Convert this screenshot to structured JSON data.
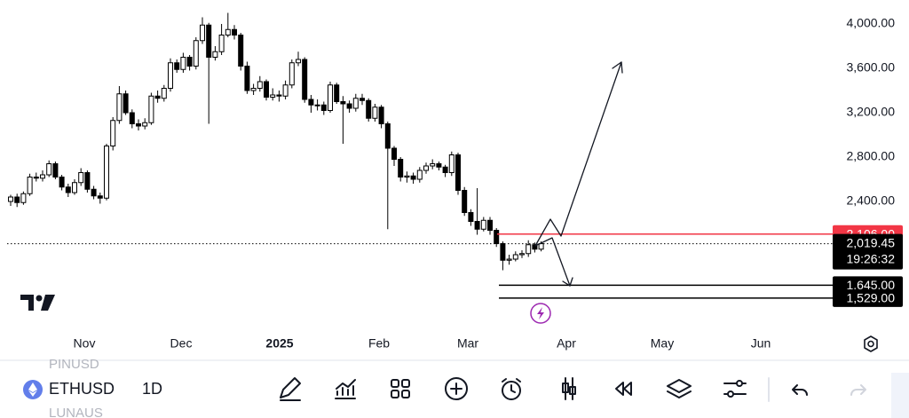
{
  "chart_data": {
    "type": "candlestick",
    "open": [
      2400,
      2440,
      2390,
      2470,
      2620,
      2610,
      2640,
      2740,
      2620,
      2530,
      2480,
      2570,
      2660,
      2510,
      2450,
      2430,
      2900,
      3130,
      3370,
      3200,
      3100,
      3080,
      3110,
      3350,
      3330,
      3420,
      3650,
      3590,
      3700,
      3620,
      3850,
      3990,
      3700,
      3750,
      3900,
      3950,
      3900,
      3620,
      3400,
      3420,
      3480,
      3340,
      3360,
      3350,
      3450,
      3650,
      3680,
      3320,
      3270,
      3270,
      3220,
      3450,
      3300,
      3280,
      3240,
      3330,
      3310,
      3150,
      3250,
      3100,
      2880,
      2780,
      2620,
      2630,
      2600,
      2680,
      2720,
      2740,
      2710,
      2660,
      2820,
      2500,
      2300,
      2220,
      2150,
      2230,
      2140,
      2020,
      1870,
      1880,
      1920,
      1930,
      2010,
      1970
    ],
    "high": [
      2460,
      2470,
      2490,
      2650,
      2660,
      2680,
      2770,
      2760,
      2640,
      2560,
      2600,
      2700,
      2680,
      2540,
      2480,
      2920,
      3160,
      3440,
      3400,
      3230,
      3140,
      3150,
      3380,
      3400,
      3450,
      3690,
      3680,
      3740,
      3720,
      3880,
      4060,
      4010,
      3800,
      4000,
      4100,
      3990,
      3920,
      3660,
      3460,
      3530,
      3500,
      3420,
      3400,
      3490,
      3680,
      3750,
      3700,
      3360,
      3320,
      3300,
      3480,
      3470,
      3350,
      3310,
      3370,
      3370,
      3330,
      3280,
      3270,
      3120,
      2900,
      2800,
      2670,
      2660,
      2710,
      2750,
      2780,
      2760,
      2730,
      2850,
      2840,
      2530,
      2330,
      2520,
      2260,
      2260,
      2160,
      2040,
      1920,
      1950,
      1960,
      2050,
      2030,
      2040
    ],
    "low": [
      2360,
      2350,
      2370,
      2450,
      2580,
      2580,
      2620,
      2600,
      2500,
      2440,
      2460,
      2540,
      2480,
      2420,
      2380,
      2410,
      2860,
      3100,
      3180,
      3060,
      3040,
      3050,
      3090,
      3290,
      3300,
      3390,
      3560,
      3560,
      3580,
      3590,
      3820,
      3100,
      3670,
      3720,
      3880,
      3860,
      3580,
      3370,
      3360,
      3390,
      3310,
      3310,
      3300,
      3320,
      3420,
      3620,
      3290,
      3200,
      3220,
      3180,
      3200,
      3280,
      2920,
      3200,
      3210,
      3270,
      3120,
      3120,
      3060,
      2150,
      2720,
      2580,
      2570,
      2560,
      2570,
      2650,
      2690,
      2680,
      2620,
      2630,
      2460,
      2270,
      2180,
      2100,
      2130,
      2100,
      1990,
      1780,
      1830,
      1860,
      1890,
      1900,
      1940,
      1950
    ],
    "close": [
      2440,
      2390,
      2470,
      2620,
      2610,
      2640,
      2740,
      2620,
      2530,
      2480,
      2570,
      2660,
      2510,
      2450,
      2430,
      2900,
      3130,
      3370,
      3200,
      3100,
      3080,
      3110,
      3350,
      3330,
      3420,
      3650,
      3590,
      3700,
      3620,
      3850,
      3990,
      3700,
      3750,
      3900,
      3950,
      3900,
      3620,
      3400,
      3420,
      3480,
      3340,
      3360,
      3350,
      3450,
      3650,
      3680,
      3320,
      3270,
      3270,
      3220,
      3450,
      3300,
      3280,
      3240,
      3330,
      3310,
      3150,
      3250,
      3100,
      2880,
      2780,
      2620,
      2630,
      2600,
      2680,
      2720,
      2740,
      2710,
      2660,
      2820,
      2500,
      2300,
      2220,
      2150,
      2230,
      2140,
      2020,
      1870,
      1880,
      1920,
      1930,
      2010,
      1970,
      2019.45
    ],
    "ylim": [
      1256,
      4216
    ],
    "yticks": [
      {
        "value": 2400,
        "label": "2,400.00"
      },
      {
        "value": 2800,
        "label": "2,800.00"
      },
      {
        "value": 3200,
        "label": "3,200.00"
      },
      {
        "value": 3600,
        "label": "3,600.00"
      },
      {
        "value": 4000,
        "label": "4,000.00"
      }
    ],
    "xticks": [
      "Nov",
      "Dec",
      "2025",
      "Feb",
      "Mar",
      "Apr",
      "May",
      "Jun"
    ],
    "lines": [
      {
        "value": 2106,
        "label": "2,106.00",
        "color": "#f23645"
      },
      {
        "value": 1645,
        "label": "1,645.00",
        "color": "#000000"
      },
      {
        "value": 1529,
        "label": "1,529.00",
        "color": "#000000"
      }
    ],
    "last_price": {
      "value": 2019.45,
      "label": "2,019.45",
      "countdown": "19:26:32"
    }
  },
  "toolbar": {
    "symbol": "ETHUSD",
    "interval": "1D",
    "faded_above": "PINUSD",
    "faded_below": "LUNAUS"
  }
}
